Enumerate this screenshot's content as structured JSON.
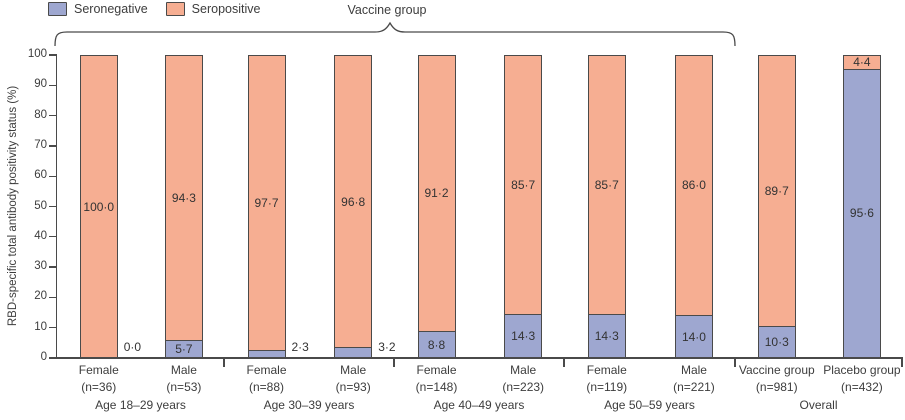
{
  "legend": {
    "items": [
      {
        "label": "Seronegative",
        "color": "#9EA7D0"
      },
      {
        "label": "Seropositive",
        "color": "#F6AE92"
      }
    ]
  },
  "annotations": {
    "vaccine_group_brace_label": "Vaccine group"
  },
  "chart_data": {
    "type": "bar",
    "stacked": true,
    "title": "",
    "xlabel": "",
    "ylabel": "RBD-specific total antibody positivity status (%)",
    "ylim": [
      0,
      100
    ],
    "yticks": [
      0,
      10,
      20,
      30,
      40,
      50,
      60,
      70,
      80,
      90,
      100
    ],
    "series_names": [
      "Seronegative",
      "Seropositive"
    ],
    "colors": {
      "seronegative": "#9EA7D0",
      "seropositive": "#F6AE92"
    },
    "legend_position": "top-left",
    "grid": false,
    "groups": [
      {
        "label": "Age 18–29 years",
        "bars": [
          {
            "category": "Female",
            "n_label": "(n=36)",
            "seronegative": 0.0,
            "seropositive": 100.0,
            "seronegative_display": "0·0",
            "seropositive_display": "100·0"
          },
          {
            "category": "Male",
            "n_label": "(n=53)",
            "seronegative": 5.7,
            "seropositive": 94.3,
            "seronegative_display": "5·7",
            "seropositive_display": "94·3"
          }
        ]
      },
      {
        "label": "Age 30–39 years",
        "bars": [
          {
            "category": "Female",
            "n_label": "(n=88)",
            "seronegative": 2.3,
            "seropositive": 97.7,
            "seronegative_display": "2·3",
            "seropositive_display": "97·7"
          },
          {
            "category": "Male",
            "n_label": "(n=93)",
            "seronegative": 3.2,
            "seropositive": 96.8,
            "seronegative_display": "3·2",
            "seropositive_display": "96·8"
          }
        ]
      },
      {
        "label": "Age 40–49 years",
        "bars": [
          {
            "category": "Female",
            "n_label": "(n=148)",
            "seronegative": 8.8,
            "seropositive": 91.2,
            "seronegative_display": "8·8",
            "seropositive_display": "91·2"
          },
          {
            "category": "Male",
            "n_label": "(n=223)",
            "seronegative": 14.3,
            "seropositive": 85.7,
            "seronegative_display": "14·3",
            "seropositive_display": "85·7"
          }
        ]
      },
      {
        "label": "Age 50–59 years",
        "bars": [
          {
            "category": "Female",
            "n_label": "(n=119)",
            "seronegative": 14.3,
            "seropositive": 85.7,
            "seronegative_display": "14·3",
            "seropositive_display": "85·7"
          },
          {
            "category": "Male",
            "n_label": "(n=221)",
            "seronegative": 14.0,
            "seropositive": 86.0,
            "seronegative_display": "14·0",
            "seropositive_display": "86·0"
          }
        ]
      },
      {
        "label": "Overall",
        "bars": [
          {
            "category": "Vaccine group",
            "n_label": "(n=981)",
            "seronegative": 10.3,
            "seropositive": 89.7,
            "seronegative_display": "10·3",
            "seropositive_display": "89·7"
          },
          {
            "category": "Placebo group",
            "n_label": "(n=432)",
            "seronegative": 95.6,
            "seropositive": 4.4,
            "seronegative_display": "95·6",
            "seropositive_display": "4·4"
          }
        ]
      }
    ]
  }
}
